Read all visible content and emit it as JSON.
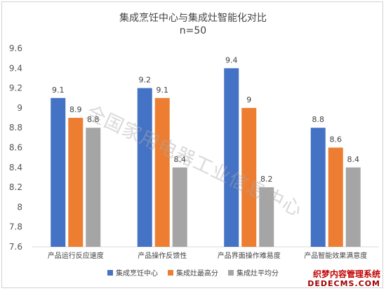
{
  "chart_data": {
    "type": "bar",
    "title": "集成烹饪中心与集成灶智能化对比",
    "subtitle": "n=50",
    "categories": [
      "产品运行反应速度",
      "产品操作反馈性",
      "产品界面操作难易度",
      "产品智能效果满意度"
    ],
    "series": [
      {
        "name": "集成烹饪中心",
        "color": "#4472c4",
        "values": [
          9.1,
          9.2,
          9.4,
          8.8
        ],
        "labels": [
          "9.1",
          "9.2",
          "9.4",
          "8.8"
        ]
      },
      {
        "name": "集成灶最高分",
        "color": "#ed7d31",
        "values": [
          8.9,
          9.1,
          9.0,
          8.6
        ],
        "labels": [
          "8.9",
          "9.1",
          "9",
          "8.6"
        ]
      },
      {
        "name": "集成灶平均分",
        "color": "#a5a5a5",
        "values": [
          8.8,
          8.4,
          8.2,
          8.4
        ],
        "labels": [
          "8.8",
          "8.4",
          "8.2",
          "8.4"
        ]
      }
    ],
    "ylim": [
      7.6,
      9.6
    ],
    "yticks": [
      "7.6",
      "7.8",
      "8",
      "8.2",
      "8.4",
      "8.6",
      "8.8",
      "9",
      "9.2",
      "9.4",
      "9.6"
    ],
    "grid": false,
    "legend_position": "bottom"
  },
  "watermark": "全国家用电器工业信息中心",
  "brand": {
    "name": "织梦内容管理系统",
    "domain": "DEDECMS.COM"
  }
}
